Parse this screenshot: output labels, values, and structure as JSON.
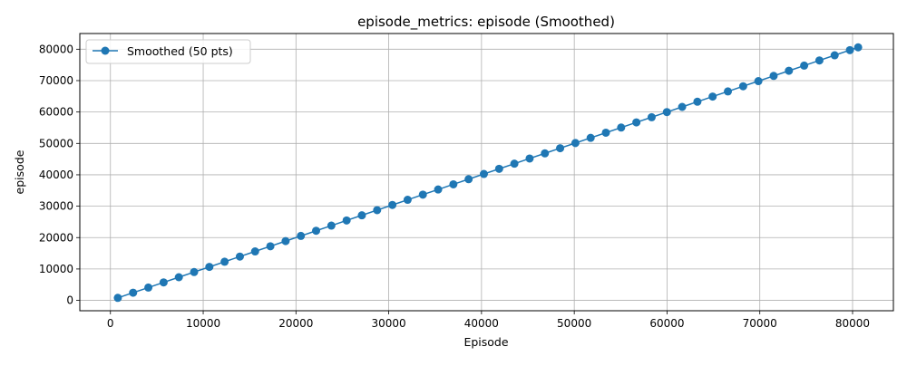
{
  "chart_data": {
    "type": "line",
    "title": "episode_metrics: episode (Smoothed)",
    "xlabel": "Episode",
    "ylabel": "episode",
    "xlim": [
      -3300,
      84400
    ],
    "ylim": [
      -3300,
      85000
    ],
    "xticks": [
      0,
      10000,
      20000,
      30000,
      40000,
      50000,
      60000,
      70000,
      80000
    ],
    "yticks": [
      0,
      10000,
      20000,
      30000,
      40000,
      50000,
      60000,
      70000,
      80000
    ],
    "grid": true,
    "legend": "upper-left",
    "series": [
      {
        "name": "Smoothed (50 pts)",
        "color": "#1f77b4",
        "marker": "circle",
        "x": [
          800,
          2444,
          4088,
          5732,
          7376,
          9020,
          10664,
          12308,
          13952,
          15596,
          17240,
          18884,
          20528,
          22172,
          23816,
          25460,
          27104,
          28748,
          30392,
          32036,
          33680,
          35324,
          36968,
          38612,
          40256,
          41900,
          43544,
          45188,
          46832,
          48476,
          50120,
          51764,
          53408,
          55052,
          56696,
          58340,
          59984,
          61628,
          63272,
          64916,
          66560,
          68204,
          69848,
          71492,
          73136,
          74780,
          76424,
          78068,
          79712,
          80600
        ],
        "y": [
          800,
          2444,
          4088,
          5732,
          7376,
          9020,
          10664,
          12308,
          13952,
          15596,
          17240,
          18884,
          20528,
          22172,
          23816,
          25460,
          27104,
          28748,
          30392,
          32036,
          33680,
          35324,
          36968,
          38612,
          40256,
          41900,
          43544,
          45188,
          46832,
          48476,
          50120,
          51764,
          53408,
          55052,
          56696,
          58340,
          59984,
          61628,
          63272,
          64916,
          66560,
          68204,
          69848,
          71492,
          73136,
          74780,
          76424,
          78068,
          79712,
          80600
        ]
      }
    ]
  }
}
